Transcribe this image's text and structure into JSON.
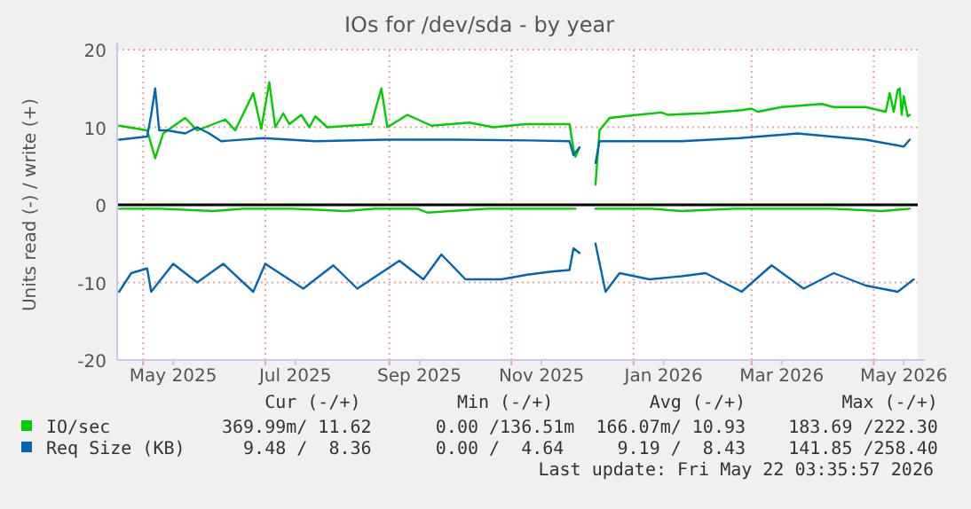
{
  "chart_data": {
    "type": "line",
    "title": "IOs for /dev/sda - by year",
    "ylabel": "Units read (-) / write (+)",
    "xlim": [
      "2025-04-18",
      "2026-05-23"
    ],
    "ylim": [
      -20,
      20
    ],
    "yticks": [
      -20,
      -10,
      0,
      10,
      20
    ],
    "xticks": [
      {
        "value": "2025-05-01",
        "label": null
      },
      {
        "value": "2025-05-16",
        "label": "May 2025"
      },
      {
        "value": "2025-07-01",
        "label": null
      },
      {
        "value": "2025-07-16",
        "label": "Jul 2025"
      },
      {
        "value": "2025-09-01",
        "label": null
      },
      {
        "value": "2025-09-16",
        "label": "Sep 2025"
      },
      {
        "value": "2025-11-01",
        "label": null
      },
      {
        "value": "2025-11-16",
        "label": "Nov 2025"
      },
      {
        "value": "2026-01-01",
        "label": null
      },
      {
        "value": "2026-01-16",
        "label": "Jan 2026"
      },
      {
        "value": "2026-03-01",
        "label": null
      },
      {
        "value": "2026-03-16",
        "label": "Mar 2026"
      },
      {
        "value": "2026-05-01",
        "label": null
      },
      {
        "value": "2026-05-16",
        "label": "May 2026"
      }
    ],
    "grid": true,
    "legend": "bottom",
    "line_style": "solid",
    "marker": "none",
    "ref_lines": [
      {
        "axis": "y",
        "value": 0,
        "color": "#000000"
      }
    ],
    "series": [
      {
        "name": "IO/sec",
        "color": "#00cc00",
        "x": [
          "2025-04-19",
          "2025-05-03",
          "2025-05-07",
          "2025-05-11",
          "2025-05-22",
          "2025-05-28",
          "2025-06-11",
          "2025-06-16",
          "2025-06-25",
          "2025-06-29",
          "2025-07-03",
          "2025-07-06",
          "2025-07-10",
          "2025-07-13",
          "2025-07-19",
          "2025-07-23",
          "2025-07-26",
          "2025-08-01",
          "2025-08-23",
          "2025-08-28",
          "2025-08-31",
          "2025-09-10",
          "2025-09-22",
          "2025-10-11",
          "2025-10-23",
          "2025-11-08",
          "2025-11-23",
          "2025-11-30",
          "2025-12-02",
          "2025-12-03",
          "2025-12-05",
          "2025-12-09",
          "2025-12-13",
          "2025-12-15",
          "2025-12-20",
          "2026-01-03",
          "2026-01-15",
          "2026-01-18",
          "2026-02-05",
          "2026-02-24",
          "2026-03-01",
          "2026-03-04",
          "2026-03-16",
          "2026-04-05",
          "2026-04-11",
          "2026-04-27",
          "2026-05-07",
          "2026-05-09",
          "2026-05-11",
          "2026-05-13",
          "2026-05-14",
          "2026-05-15",
          "2026-05-16",
          "2026-05-18",
          "2026-05-19"
        ],
        "values": [
          10.2,
          9.6,
          6.0,
          9.2,
          11.2,
          9.6,
          11,
          9.6,
          14.4,
          9.8,
          15.8,
          10,
          11.8,
          10.4,
          11.6,
          10,
          11.4,
          10,
          10.4,
          15,
          10,
          11.6,
          10.2,
          10.6,
          10,
          10.4,
          10.4,
          10.4,
          7.2,
          6.2,
          7.4,
          null,
          2.6,
          9.6,
          11.2,
          11.6,
          11.9,
          11.6,
          11.8,
          12.2,
          12.4,
          12,
          12.6,
          13,
          12.6,
          12.6,
          12,
          14.4,
          12,
          14.8,
          15,
          11.6,
          14,
          11.4,
          11.6
        ]
      },
      {
        "color": "#00cc00",
        "x": [
          "2025-04-19",
          "2025-05-10",
          "2025-06-05",
          "2025-06-20",
          "2025-07-15",
          "2025-08-10",
          "2025-08-25",
          "2025-09-15",
          "2025-09-20",
          "2025-10-20",
          "2025-11-15",
          "2025-12-03",
          "2025-12-09",
          "2025-12-13",
          "2026-01-10",
          "2026-01-25",
          "2026-02-20",
          "2026-03-20",
          "2026-04-10",
          "2026-05-05",
          "2026-05-19"
        ],
        "values": [
          -0.5,
          -0.5,
          -0.8,
          -0.5,
          -0.5,
          -0.8,
          -0.5,
          -0.5,
          -1,
          -0.5,
          -0.5,
          -0.5,
          null,
          -0.5,
          -0.5,
          -0.8,
          -0.5,
          -0.5,
          -0.5,
          -0.8,
          -0.5
        ]
      },
      {
        "name": "Req Size (KB)",
        "color": "#0066b3",
        "x": [
          "2025-04-19",
          "2025-05-03",
          "2025-05-05",
          "2025-05-07",
          "2025-05-09",
          "2025-05-13",
          "2025-05-22",
          "2025-05-28",
          "2025-06-03",
          "2025-06-09",
          "2025-06-30",
          "2025-07-26",
          "2025-08-30",
          "2025-10-05",
          "2025-11-10",
          "2025-11-30",
          "2025-12-02",
          "2025-12-05",
          "2025-12-09",
          "2025-12-13",
          "2025-12-15",
          "2026-01-25",
          "2026-02-23",
          "2026-03-24",
          "2026-04-27",
          "2026-05-16",
          "2026-05-19"
        ],
        "values": [
          8.4,
          8.8,
          11.6,
          15,
          9.6,
          9.6,
          9.2,
          10,
          9.2,
          8.2,
          8.6,
          8.2,
          8.4,
          8.4,
          8.3,
          8.2,
          6.4,
          7.4,
          null,
          5.4,
          8.2,
          8.2,
          8.6,
          9.2,
          8.4,
          7.5,
          8.4
        ]
      },
      {
        "color": "#0066b3",
        "x": [
          "2025-04-19",
          "2025-04-25",
          "2025-05-03",
          "2025-05-05",
          "2025-05-16",
          "2025-05-28",
          "2025-06-10",
          "2025-06-25",
          "2025-07-01",
          "2025-07-20",
          "2025-08-04",
          "2025-08-16",
          "2025-09-06",
          "2025-09-18",
          "2025-09-27",
          "2025-10-09",
          "2025-10-27",
          "2025-11-09",
          "2025-11-21",
          "2025-11-30",
          "2025-12-02",
          "2025-12-05",
          "2025-12-09",
          "2025-12-13",
          "2025-12-18",
          "2025-12-25",
          "2026-01-09",
          "2026-01-25",
          "2026-02-06",
          "2026-02-24",
          "2026-03-11",
          "2026-03-27",
          "2026-04-11",
          "2026-04-27",
          "2026-05-13",
          "2026-05-21"
        ],
        "values": [
          -11.2,
          -8.8,
          -8.2,
          -11.2,
          -7.6,
          -10,
          -7.6,
          -11.2,
          -7.6,
          -10.8,
          -7.8,
          -10.8,
          -7.2,
          -9.6,
          -6.4,
          -9.6,
          -9.6,
          -9,
          -8.6,
          -8.4,
          -5.6,
          -6.2,
          null,
          -5,
          -11.2,
          -8.8,
          -9.6,
          -9.2,
          -8.8,
          -11.2,
          -7.8,
          -10.8,
          -8.8,
          -10.4,
          -11.2,
          -9.6
        ]
      }
    ],
    "annotations": [
      "    Cur (-/+)         Min (-/+)         Avg (-/+)         Max (-/+)",
      "369.99m/ 11.62      0.00 /136.51m  166.07m/ 10.93    183.69 /222.30",
      "  9.48 /  8.36      0.00 /  4.64     9.19 /  8.43    141.85 /258.40",
      "Last update: Fri May 22 03:35:57 2026"
    ]
  }
}
